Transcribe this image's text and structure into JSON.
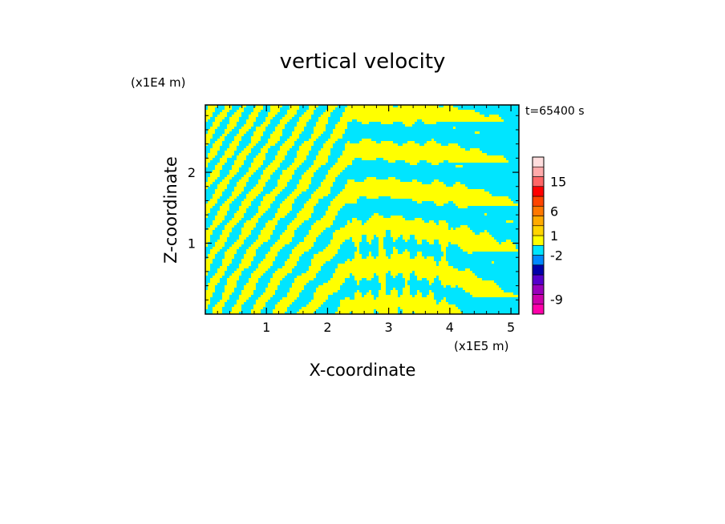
{
  "chart_data": {
    "type": "heatmap",
    "title": "vertical velocity",
    "xlabel": "X-coordinate",
    "ylabel": "Z-coordinate",
    "x_scale_label": "(x1E5 m)",
    "y_scale_label": "(x1E4 m)",
    "time_label": "t=65400 s",
    "xlim": [
      0,
      5.13
    ],
    "ylim": [
      0,
      2.95
    ],
    "x_ticks": [
      1,
      2,
      3,
      4,
      5
    ],
    "y_ticks": [
      1,
      2
    ],
    "x_tick_labels": [
      "1",
      "2",
      "3",
      "4",
      "5"
    ],
    "y_tick_labels": [
      "1",
      "2"
    ],
    "colorbar": {
      "levels": [
        {
          "color": "#ff00aa"
        },
        {
          "color": "#cc00aa"
        },
        {
          "color": "#9900bb"
        },
        {
          "color": "#5500cc"
        },
        {
          "color": "#0000aa"
        },
        {
          "color": "#0088ff"
        },
        {
          "color": "#00e5ff"
        },
        {
          "color": "#ffff00"
        },
        {
          "color": "#ffd400"
        },
        {
          "color": "#ffaa00"
        },
        {
          "color": "#ff7700"
        },
        {
          "color": "#ff4400"
        },
        {
          "color": "#ff0000"
        },
        {
          "color": "#ff6666"
        },
        {
          "color": "#ffaaaa"
        },
        {
          "color": "#ffdddd"
        }
      ],
      "tick_labels": [
        {
          "label": "-9",
          "index": 1.5
        },
        {
          "label": "-2",
          "index": 6
        },
        {
          "label": "1",
          "index": 8
        },
        {
          "label": "6",
          "index": 10.5
        },
        {
          "label": "15",
          "index": 13.5
        }
      ]
    },
    "field_colors": {
      "positive": "#ffff00",
      "negative": "#00e5ff"
    },
    "grid": false
  }
}
